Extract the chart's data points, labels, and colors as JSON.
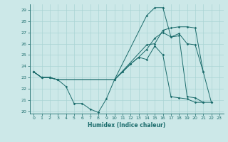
{
  "xlabel": "Humidex (Indice chaleur)",
  "bg_color": "#cce8e8",
  "line_color": "#1a6b6b",
  "grid_color": "#aad4d4",
  "xlim": [
    -0.5,
    23.5
  ],
  "ylim": [
    19.8,
    29.5
  ],
  "xticks": [
    0,
    1,
    2,
    3,
    4,
    5,
    6,
    7,
    8,
    9,
    10,
    11,
    12,
    13,
    14,
    15,
    16,
    17,
    18,
    19,
    20,
    21,
    22,
    23
  ],
  "yticks": [
    20,
    21,
    22,
    23,
    24,
    25,
    26,
    27,
    28,
    29
  ],
  "line1_x": [
    0,
    1,
    2,
    3,
    4,
    5,
    6,
    7,
    8,
    9,
    10,
    11,
    12,
    13,
    14,
    15,
    16,
    17,
    18,
    19,
    20,
    21
  ],
  "line1_y": [
    23.5,
    23.0,
    23.0,
    22.8,
    22.2,
    20.7,
    20.7,
    20.2,
    19.9,
    21.1,
    22.8,
    23.5,
    24.2,
    24.8,
    24.6,
    25.8,
    25.0,
    21.3,
    21.2,
    21.1,
    20.8,
    20.8
  ],
  "line2_x": [
    0,
    1,
    2,
    3,
    10,
    11,
    12,
    13,
    14,
    15,
    16,
    17,
    18,
    19,
    20,
    21,
    22
  ],
  "line2_y": [
    23.5,
    23.0,
    23.0,
    22.8,
    22.8,
    23.5,
    24.2,
    24.8,
    25.5,
    26.5,
    27.0,
    26.6,
    26.9,
    26.0,
    25.9,
    23.5,
    20.8
  ],
  "line3_x": [
    0,
    1,
    2,
    3,
    10,
    14,
    15,
    16,
    17,
    18,
    19,
    20,
    21,
    22
  ],
  "line3_y": [
    23.5,
    23.0,
    23.0,
    22.8,
    22.8,
    28.5,
    29.2,
    29.2,
    26.6,
    26.7,
    21.3,
    21.2,
    20.8,
    20.8
  ],
  "line4_x": [
    0,
    1,
    2,
    3,
    10,
    14,
    15,
    16,
    17,
    18,
    19,
    20,
    21
  ],
  "line4_y": [
    23.5,
    23.0,
    23.0,
    22.8,
    22.8,
    25.9,
    26.0,
    27.2,
    27.4,
    27.5,
    27.5,
    27.4,
    23.5
  ]
}
